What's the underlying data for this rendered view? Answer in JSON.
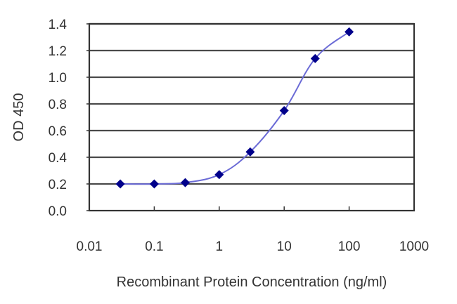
{
  "chart_data": {
    "type": "line",
    "title": "",
    "xlabel": "Recombinant Protein Concentration (ng/ml)",
    "ylabel": "OD 450",
    "xscale": "log",
    "xlim": [
      0.01,
      1000
    ],
    "ylim": [
      0.0,
      1.4
    ],
    "x_ticks": [
      0.01,
      0.1,
      1,
      10,
      100,
      1000
    ],
    "x_tick_labels": [
      "0.01",
      "0.1",
      "1",
      "10",
      "100",
      "1000"
    ],
    "y_ticks": [
      0.0,
      0.2,
      0.4,
      0.6,
      0.8,
      1.0,
      1.2,
      1.4
    ],
    "y_tick_labels": [
      "0.0",
      "0.2",
      "0.4",
      "0.6",
      "0.8",
      "1.0",
      "1.2",
      "1.4"
    ],
    "grid": {
      "horizontal": true,
      "vertical": false
    },
    "legend": null,
    "series": [
      {
        "name": "OD450",
        "marker": "diamond",
        "line_color": "#6b6bd6",
        "marker_color": "#00008b",
        "x": [
          0.03,
          0.1,
          0.3,
          1,
          3,
          10,
          30,
          100
        ],
        "y": [
          0.2,
          0.2,
          0.21,
          0.27,
          0.44,
          0.75,
          1.14,
          1.34
        ]
      }
    ]
  },
  "colors": {
    "background": "#ffffff",
    "grid": "#4a4a4a",
    "axis": "#333333",
    "line": "#6b6bd6",
    "marker": "#00008b"
  }
}
